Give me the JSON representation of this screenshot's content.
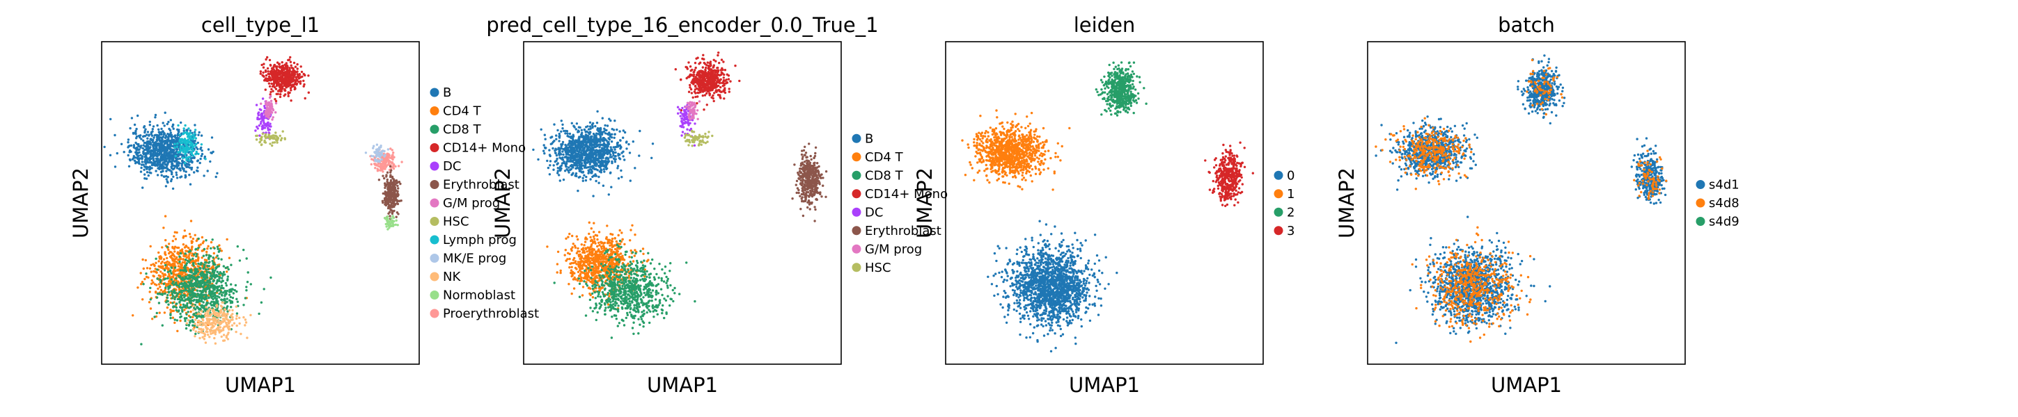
{
  "chart_data": [
    {
      "type": "scatter",
      "title": "cell_type_l1",
      "xlabel": "UMAP1",
      "ylabel": "UMAP2",
      "legend_placement": "right",
      "categories": [
        "B",
        "CD4 T",
        "CD8 T",
        "CD14+ Mono",
        "DC",
        "Erythroblast",
        "G/M prog",
        "HSC",
        "Lymph prog",
        "MK/E prog",
        "NK",
        "Normoblast",
        "Proerythroblast"
      ],
      "colors": [
        "#1f77b4",
        "#ff7f0e",
        "#279e68",
        "#d62728",
        "#aa40fc",
        "#8c564b",
        "#e377c2",
        "#b5bd61",
        "#17becf",
        "#aec7e8",
        "#ffbb78",
        "#98df8a",
        "#ff9896"
      ],
      "clusters": [
        {
          "category": "B",
          "center": [
            0.2,
            0.66
          ],
          "spread": [
            0.13,
            0.09
          ],
          "count": 900
        },
        {
          "category": "Lymph prog",
          "center": [
            0.27,
            0.68
          ],
          "spread": [
            0.04,
            0.06
          ],
          "count": 120
        },
        {
          "category": "CD4 T",
          "center": [
            0.26,
            0.28
          ],
          "spread": [
            0.13,
            0.13
          ],
          "count": 700
        },
        {
          "category": "CD8 T",
          "center": [
            0.31,
            0.23
          ],
          "spread": [
            0.14,
            0.13
          ],
          "count": 800
        },
        {
          "category": "NK",
          "center": [
            0.36,
            0.13
          ],
          "spread": [
            0.09,
            0.06
          ],
          "count": 250
        },
        {
          "category": "CD14+ Mono",
          "center": [
            0.57,
            0.89
          ],
          "spread": [
            0.07,
            0.05
          ],
          "count": 500
        },
        {
          "category": "DC",
          "center": [
            0.51,
            0.76
          ],
          "spread": [
            0.03,
            0.05
          ],
          "count": 80
        },
        {
          "category": "G/M prog",
          "center": [
            0.53,
            0.79
          ],
          "spread": [
            0.02,
            0.04
          ],
          "count": 60
        },
        {
          "category": "HSC",
          "center": [
            0.53,
            0.7
          ],
          "spread": [
            0.05,
            0.02
          ],
          "count": 60
        },
        {
          "category": "Proerythroblast",
          "center": [
            0.89,
            0.63
          ],
          "spread": [
            0.04,
            0.04
          ],
          "count": 150
        },
        {
          "category": "MK/E prog",
          "center": [
            0.87,
            0.65
          ],
          "spread": [
            0.03,
            0.03
          ],
          "count": 50
        },
        {
          "category": "Erythroblast",
          "center": [
            0.91,
            0.53
          ],
          "spread": [
            0.03,
            0.07
          ],
          "count": 250
        },
        {
          "category": "Normoblast",
          "center": [
            0.91,
            0.44
          ],
          "spread": [
            0.02,
            0.02
          ],
          "count": 40
        }
      ]
    },
    {
      "type": "scatter",
      "title": "pred_cell_type_16_encoder_0.0_True_1",
      "xlabel": "UMAP1",
      "ylabel": "UMAP2",
      "legend_placement": "right",
      "categories": [
        "B",
        "CD4 T",
        "CD8 T",
        "CD14+ Mono",
        "DC",
        "Erythroblast",
        "G/M prog",
        "HSC"
      ],
      "colors": [
        "#1f77b4",
        "#ff7f0e",
        "#279e68",
        "#d62728",
        "#aa40fc",
        "#8c564b",
        "#e377c2",
        "#b5bd61"
      ],
      "clusters": [
        {
          "category": "B",
          "center": [
            0.2,
            0.66
          ],
          "spread": [
            0.13,
            0.09
          ],
          "count": 1000
        },
        {
          "category": "CD4 T",
          "center": [
            0.24,
            0.31
          ],
          "spread": [
            0.12,
            0.11
          ],
          "count": 800
        },
        {
          "category": "CD8 T",
          "center": [
            0.33,
            0.23
          ],
          "spread": [
            0.14,
            0.12
          ],
          "count": 700
        },
        {
          "category": "CD14+ Mono",
          "center": [
            0.58,
            0.88
          ],
          "spread": [
            0.07,
            0.06
          ],
          "count": 500
        },
        {
          "category": "DC",
          "center": [
            0.51,
            0.76
          ],
          "spread": [
            0.03,
            0.05
          ],
          "count": 80
        },
        {
          "category": "G/M prog",
          "center": [
            0.53,
            0.79
          ],
          "spread": [
            0.02,
            0.04
          ],
          "count": 50
        },
        {
          "category": "HSC",
          "center": [
            0.54,
            0.7
          ],
          "spread": [
            0.05,
            0.02
          ],
          "count": 60
        },
        {
          "category": "Erythroblast",
          "center": [
            0.9,
            0.57
          ],
          "spread": [
            0.04,
            0.09
          ],
          "count": 400
        }
      ]
    },
    {
      "type": "scatter",
      "title": "leiden",
      "xlabel": "UMAP1",
      "ylabel": "UMAP2",
      "legend_placement": "right",
      "categories": [
        "0",
        "1",
        "2",
        "3"
      ],
      "colors": [
        "#1f77b4",
        "#ff7f0e",
        "#279e68",
        "#d62728"
      ],
      "clusters": [
        {
          "category": "0",
          "center": [
            0.33,
            0.24
          ],
          "spread": [
            0.15,
            0.14
          ],
          "count": 1600
        },
        {
          "category": "1",
          "center": [
            0.2,
            0.66
          ],
          "spread": [
            0.13,
            0.09
          ],
          "count": 1000
        },
        {
          "category": "2",
          "center": [
            0.55,
            0.85
          ],
          "spread": [
            0.06,
            0.08
          ],
          "count": 500
        },
        {
          "category": "3",
          "center": [
            0.89,
            0.58
          ],
          "spread": [
            0.05,
            0.09
          ],
          "count": 400
        }
      ]
    },
    {
      "type": "scatter",
      "title": "batch",
      "xlabel": "UMAP1",
      "ylabel": "UMAP2",
      "legend_placement": "right",
      "categories": [
        "s4d1",
        "s4d8",
        "s4d9"
      ],
      "colors": [
        "#1f77b4",
        "#ff7f0e",
        "#279e68"
      ],
      "clusters": [
        {
          "category": "s4d1",
          "center": [
            0.2,
            0.66
          ],
          "spread": [
            0.13,
            0.09
          ],
          "count": 700
        },
        {
          "category": "s4d8",
          "center": [
            0.2,
            0.66
          ],
          "spread": [
            0.13,
            0.09
          ],
          "count": 300
        },
        {
          "category": "s4d1",
          "center": [
            0.33,
            0.24
          ],
          "spread": [
            0.15,
            0.14
          ],
          "count": 1100
        },
        {
          "category": "s4d8",
          "center": [
            0.33,
            0.24
          ],
          "spread": [
            0.15,
            0.14
          ],
          "count": 500
        },
        {
          "category": "s4d1",
          "center": [
            0.55,
            0.85
          ],
          "spread": [
            0.06,
            0.08
          ],
          "count": 450
        },
        {
          "category": "s4d8",
          "center": [
            0.55,
            0.85
          ],
          "spread": [
            0.06,
            0.08
          ],
          "count": 60
        },
        {
          "category": "s4d1",
          "center": [
            0.89,
            0.58
          ],
          "spread": [
            0.05,
            0.09
          ],
          "count": 330
        },
        {
          "category": "s4d8",
          "center": [
            0.89,
            0.58
          ],
          "spread": [
            0.05,
            0.09
          ],
          "count": 70
        }
      ]
    }
  ]
}
